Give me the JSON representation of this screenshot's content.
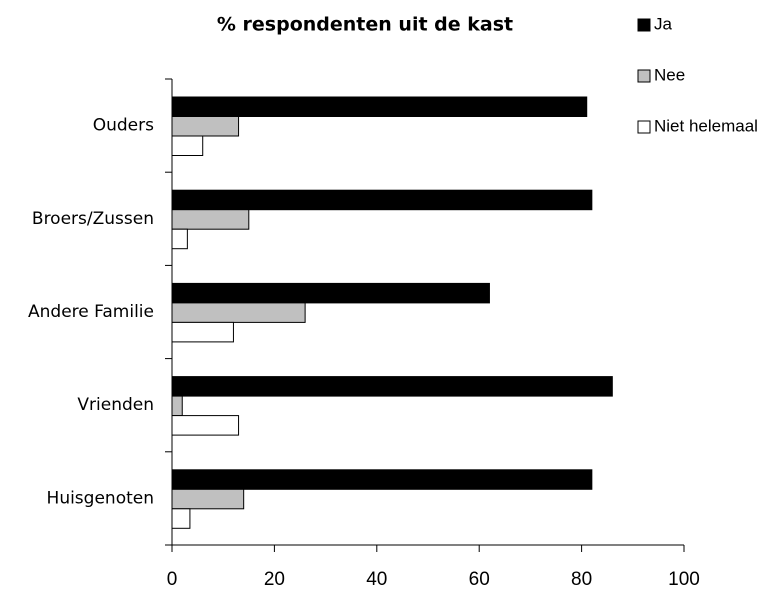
{
  "chart_data": {
    "type": "bar",
    "orientation": "horizontal",
    "title": "% respondenten uit de kast",
    "categories": [
      "Ouders",
      "Broers/Zussen",
      "Andere Familie",
      "Vrienden",
      "Huisgenoten"
    ],
    "series": [
      {
        "name": "Ja",
        "color": "#000000",
        "values": [
          81,
          82,
          62,
          86,
          82
        ]
      },
      {
        "name": "Nee",
        "color": "#c0c0c0",
        "values": [
          13,
          15,
          26,
          2,
          14
        ]
      },
      {
        "name": "Niet helemaal",
        "color": "#ffffff",
        "values": [
          6,
          3,
          12,
          13,
          3.5
        ]
      }
    ],
    "xlim": [
      0,
      100
    ],
    "xticks": [
      0,
      20,
      40,
      60,
      80,
      100
    ],
    "grid": false,
    "legend": "right"
  }
}
